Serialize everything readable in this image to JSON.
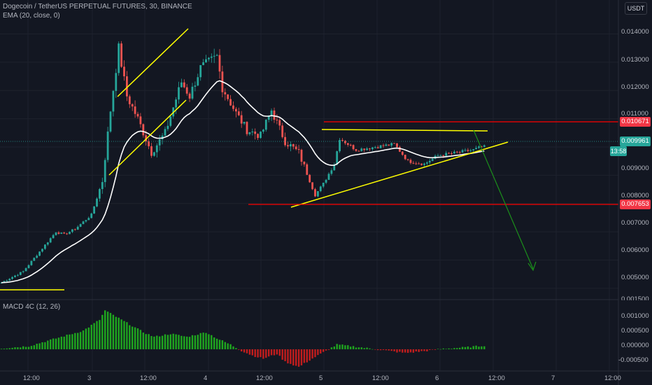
{
  "header": {
    "symbol_line": "Dogecoin / TetherUS PERPETUAL FUTURES, 30, BINANCE",
    "ema_line": "EMA (20, close, 0)",
    "currency_button": "USDT"
  },
  "macd_panel": {
    "label": "MACD 4C (12, 26)"
  },
  "price_axis": {
    "ticks": [
      "0.014000",
      "0.013000",
      "0.012000",
      "0.011000",
      "0.009000",
      "0.008000",
      "0.007000",
      "0.006000",
      "0.005000"
    ]
  },
  "macd_axis": {
    "ticks": [
      "0.001000",
      "0.000500",
      "0.000000",
      "-0.000500"
    ],
    "partial_top": "0.001500"
  },
  "time_axis": {
    "ticks": [
      "12:00",
      "3",
      "12:00",
      "4",
      "12:00",
      "5",
      "12:00",
      "6",
      "12:00",
      "7",
      "12:00"
    ]
  },
  "price_tags": {
    "resistance": "0.010671",
    "current": "0.009961",
    "countdown": "13:58",
    "support": "0.007653"
  },
  "colors": {
    "background": "#131722",
    "up_candle": "#26a69a",
    "down_candle": "#ef5350",
    "ema": "#ffffff",
    "trendline": "#ffff00",
    "level_line": "#ff0000",
    "arrow": "#1b8f1b",
    "macd_up": "#1fa61f",
    "macd_down": "#c21d1d"
  },
  "chart_data": {
    "type": "candlestick",
    "price_axis_range": [
      0.0046,
      0.0152
    ],
    "macd_axis_range": [
      -0.0007,
      0.0016
    ],
    "ema_period": 20,
    "anchors": [
      [
        0,
        0.0052
      ],
      [
        8,
        0.0056
      ],
      [
        14,
        0.0063
      ],
      [
        20,
        0.007
      ],
      [
        23,
        0.0069
      ],
      [
        27,
        0.0071
      ],
      [
        33,
        0.0076
      ],
      [
        37,
        0.0088
      ],
      [
        40,
        0.0113
      ],
      [
        43,
        0.0135
      ],
      [
        46,
        0.0118
      ],
      [
        50,
        0.011
      ],
      [
        55,
        0.0098
      ],
      [
        60,
        0.0105
      ],
      [
        66,
        0.0123
      ],
      [
        69,
        0.0118
      ],
      [
        73,
        0.0128
      ],
      [
        79,
        0.0132
      ],
      [
        81,
        0.0121
      ],
      [
        86,
        0.0112
      ],
      [
        90,
        0.0106
      ],
      [
        95,
        0.0104
      ],
      [
        99,
        0.0113
      ],
      [
        104,
        0.0102
      ],
      [
        109,
        0.0098
      ],
      [
        115,
        0.0083
      ],
      [
        118,
        0.0087
      ],
      [
        122,
        0.0094
      ],
      [
        124,
        0.0103
      ],
      [
        130,
        0.0099
      ],
      [
        137,
        0.01
      ],
      [
        144,
        0.0101
      ],
      [
        149,
        0.0095
      ],
      [
        155,
        0.0094
      ],
      [
        160,
        0.0097
      ],
      [
        167,
        0.0098
      ],
      [
        173,
        0.0099
      ],
      [
        176,
        0.01
      ]
    ],
    "macd_histogram_max": 0.00125,
    "macd_histogram_min": -0.00057,
    "levels": {
      "resistance": 0.010671,
      "support": 0.007653,
      "last_price": 0.009961
    }
  }
}
